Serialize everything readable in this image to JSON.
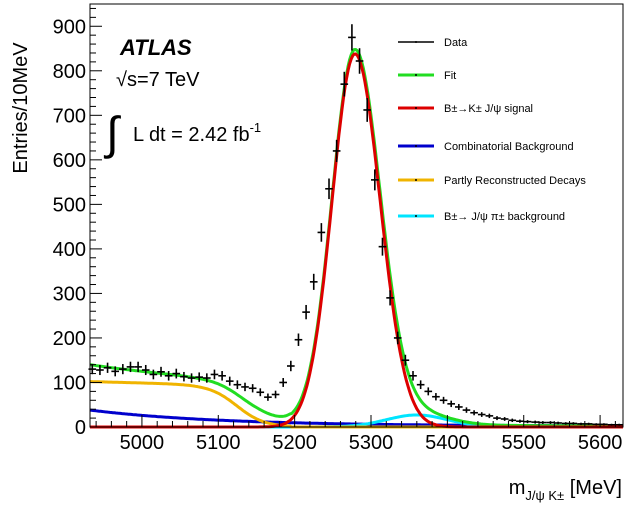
{
  "chart_data": {
    "type": "line",
    "xlabel_main": "m",
    "xlabel_sub": "J/ψ K±",
    "xlabel_unit": "[MeV]",
    "ylabel": "Entries/10MeV",
    "xlim": [
      4932,
      5630
    ],
    "ylim": [
      0,
      950
    ],
    "x_ticks": [
      5000,
      5100,
      5200,
      5300,
      5400,
      5500,
      5600
    ],
    "y_ticks": [
      0,
      100,
      200,
      300,
      400,
      500,
      600,
      700,
      800,
      900
    ],
    "annotations": {
      "experiment": "ATLAS",
      "energy": "√s=7 TeV",
      "lumi_prefix": "L dt = 2.42 fb",
      "lumi_exp": "-1"
    },
    "legend_position": "top-right",
    "series": [
      {
        "name": "Data",
        "color": "#000000",
        "kind": "points",
        "bin_width": 10,
        "x": [
          4935,
          4945,
          4955,
          4965,
          4975,
          4985,
          4995,
          5005,
          5015,
          5025,
          5035,
          5045,
          5055,
          5065,
          5075,
          5085,
          5095,
          5105,
          5115,
          5125,
          5135,
          5145,
          5155,
          5165,
          5175,
          5185,
          5195,
          5205,
          5215,
          5225,
          5235,
          5245,
          5255,
          5265,
          5275,
          5285,
          5295,
          5305,
          5315,
          5325,
          5335,
          5345,
          5355,
          5365,
          5375,
          5385,
          5395,
          5405,
          5415,
          5425,
          5435,
          5445,
          5455,
          5465,
          5475,
          5485,
          5495,
          5505,
          5515,
          5525,
          5535,
          5545,
          5555,
          5565,
          5575,
          5585,
          5595,
          5605,
          5615,
          5625
        ],
        "y": [
          130,
          128,
          133,
          125,
          130,
          135,
          135,
          128,
          118,
          124,
          115,
          120,
          113,
          110,
          112,
          110,
          118,
          115,
          103,
          95,
          90,
          87,
          78,
          67,
          73,
          100,
          137,
          196,
          258,
          326,
          437,
          535,
          620,
          770,
          875,
          822,
          712,
          555,
          405,
          290,
          200,
          150,
          115,
          95,
          80,
          68,
          60,
          52,
          45,
          38,
          32,
          28,
          25,
          20,
          18,
          15,
          13,
          12,
          11,
          10,
          10,
          9,
          8,
          8,
          7,
          7,
          6,
          6,
          5,
          5
        ]
      },
      {
        "name": "Fit",
        "color": "#22dd22",
        "kind": "curve"
      },
      {
        "name": "B±→K± J/ψ signal",
        "color": "#dd0000",
        "kind": "curve"
      },
      {
        "name": "Combinatorial Background",
        "color": "#0000cc",
        "kind": "curve"
      },
      {
        "name": "Partly Reconstructed Decays",
        "color": "#f0b400",
        "kind": "curve"
      },
      {
        "name": "B±→ J/ψ π± background",
        "color": "#00e5ff",
        "kind": "curve"
      }
    ]
  }
}
